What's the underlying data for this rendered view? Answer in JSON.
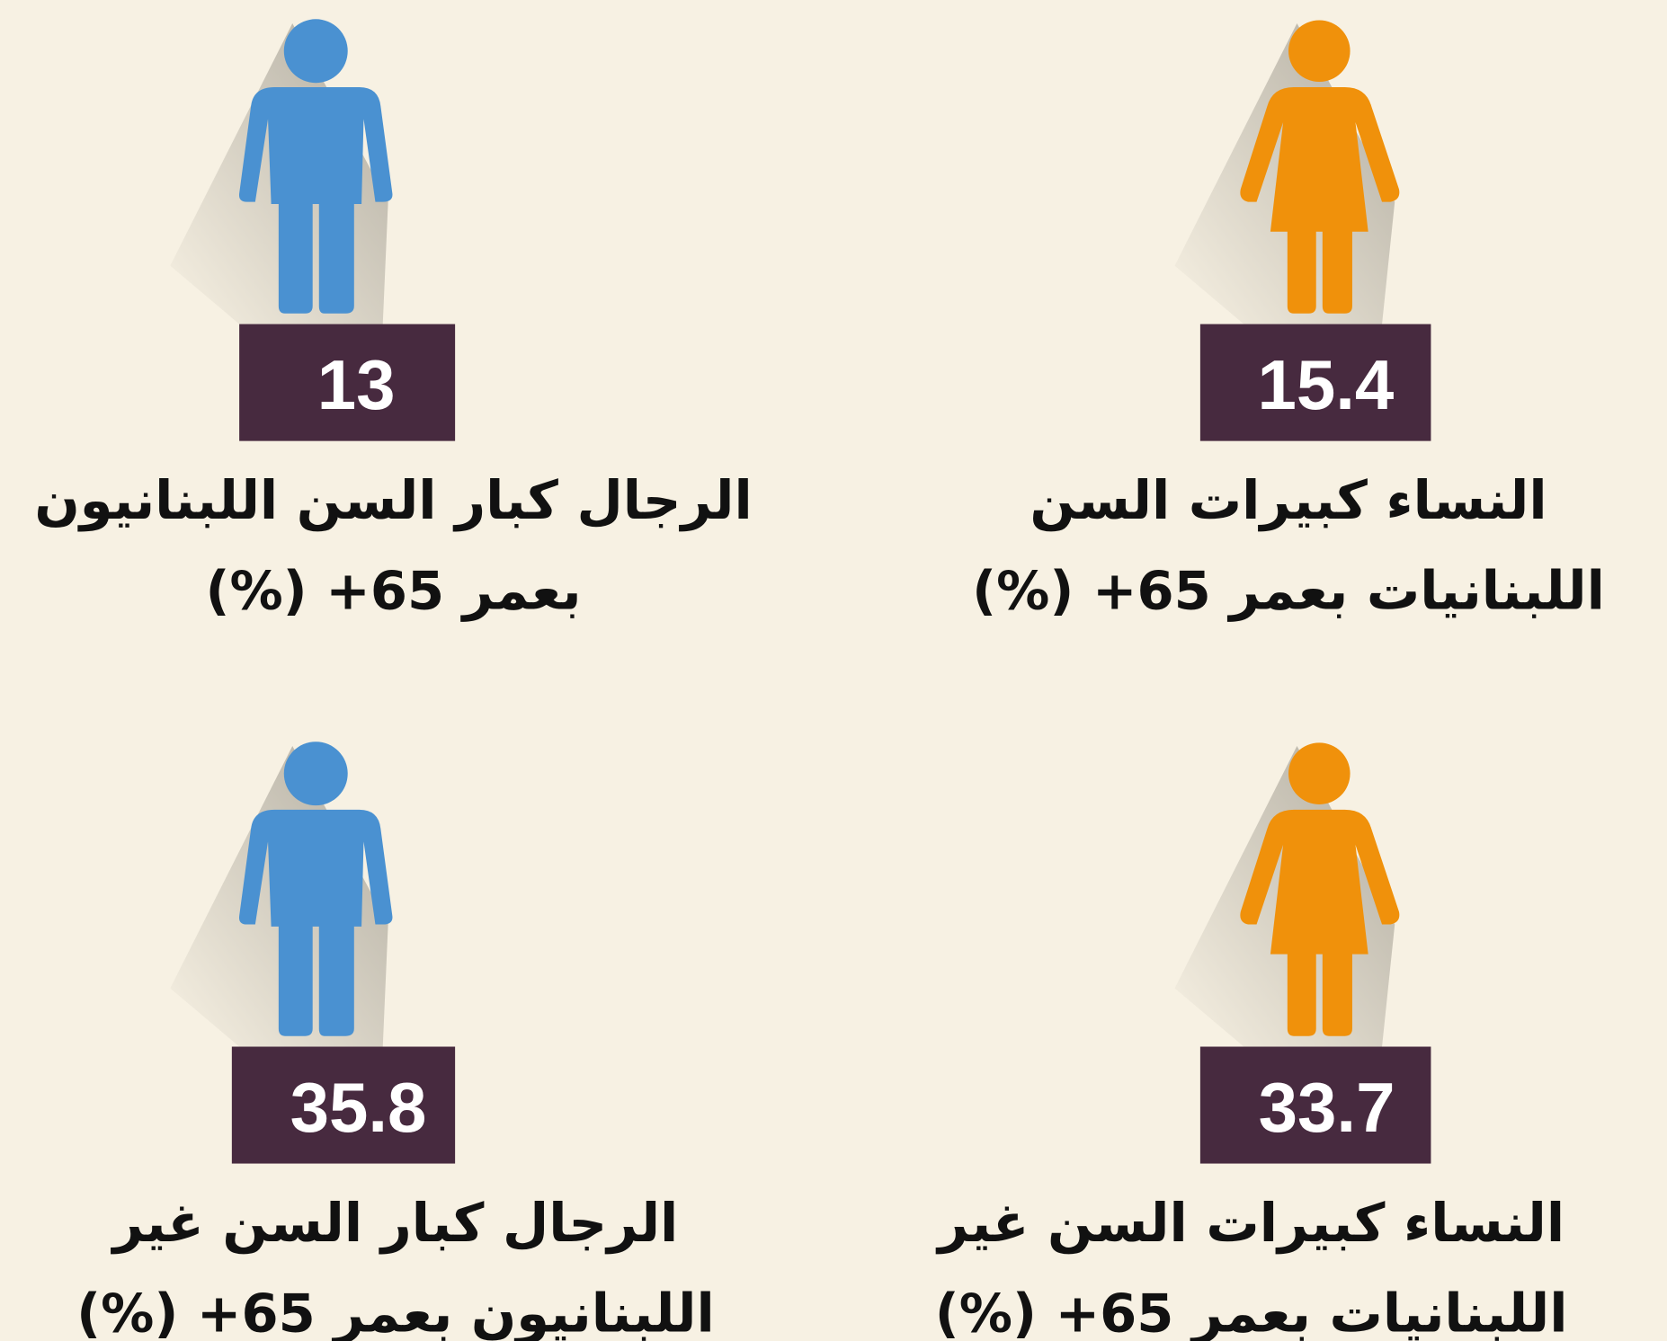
{
  "panels": [
    {
      "lines": [
        "الرجال كبار السن اللبنانيون",
        "بعمر 65+ (%)"
      ],
      "value": 13
    },
    {
      "lines": [
        "النساء كبيرات السن",
        "اللبنانيات بعمر 65+ (%)"
      ],
      "value": 15.4
    },
    {
      "lines": [
        "الرجال كبار السن غير",
        "اللبنانيون بعمر 65+ (%)"
      ],
      "value": 35.8
    },
    {
      "lines": [
        "النساء كبيرات السن غير",
        "اللبنانيات بعمر 65+ (%)"
      ],
      "value": 33.7
    }
  ]
}
